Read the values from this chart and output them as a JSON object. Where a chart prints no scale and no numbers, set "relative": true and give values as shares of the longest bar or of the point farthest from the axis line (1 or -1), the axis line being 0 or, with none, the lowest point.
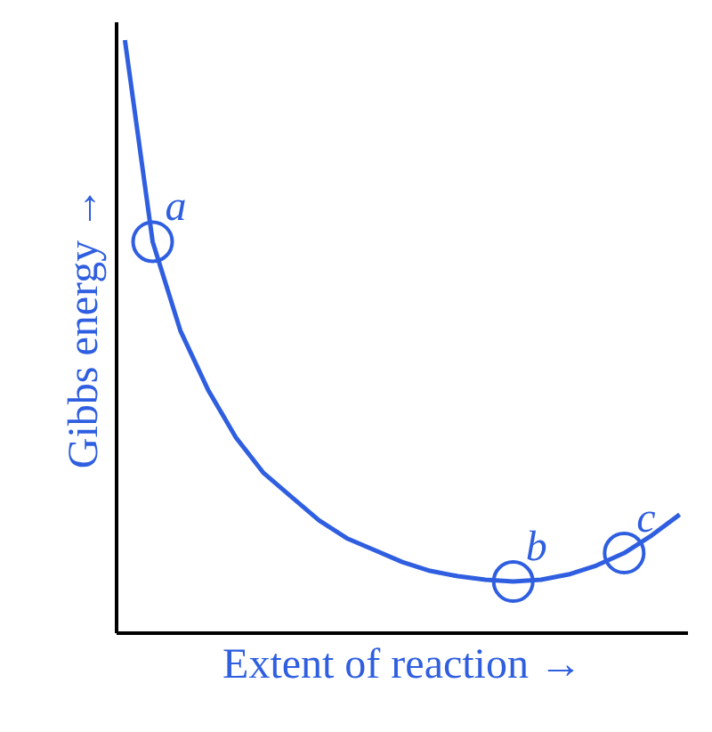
{
  "chart_data": {
    "type": "line",
    "relative": true,
    "xlabel": "Extent of reaction →",
    "ylabel": "Gibbs energy →",
    "line_style": "solid",
    "categories": [
      null,
      null,
      null,
      null,
      null,
      null,
      null,
      null,
      null,
      null,
      null,
      null,
      null,
      null,
      null,
      null,
      null,
      null,
      null,
      null,
      null
    ],
    "series": [
      {
        "color": "#2f5fe0",
        "values": [
          1.0,
          0.66,
          0.51,
          0.41,
          0.33,
          0.27,
          0.23,
          0.19,
          0.16,
          0.14,
          0.12,
          0.105,
          0.096,
          0.09,
          0.087,
          0.09,
          0.099,
          0.114,
          0.135,
          0.165,
          0.2
        ]
      }
    ],
    "annotations": [
      {
        "text": "a",
        "y": 0.66
      },
      {
        "text": "b",
        "y": 0.087
      },
      {
        "text": "c",
        "y": 0.135
      }
    ]
  }
}
